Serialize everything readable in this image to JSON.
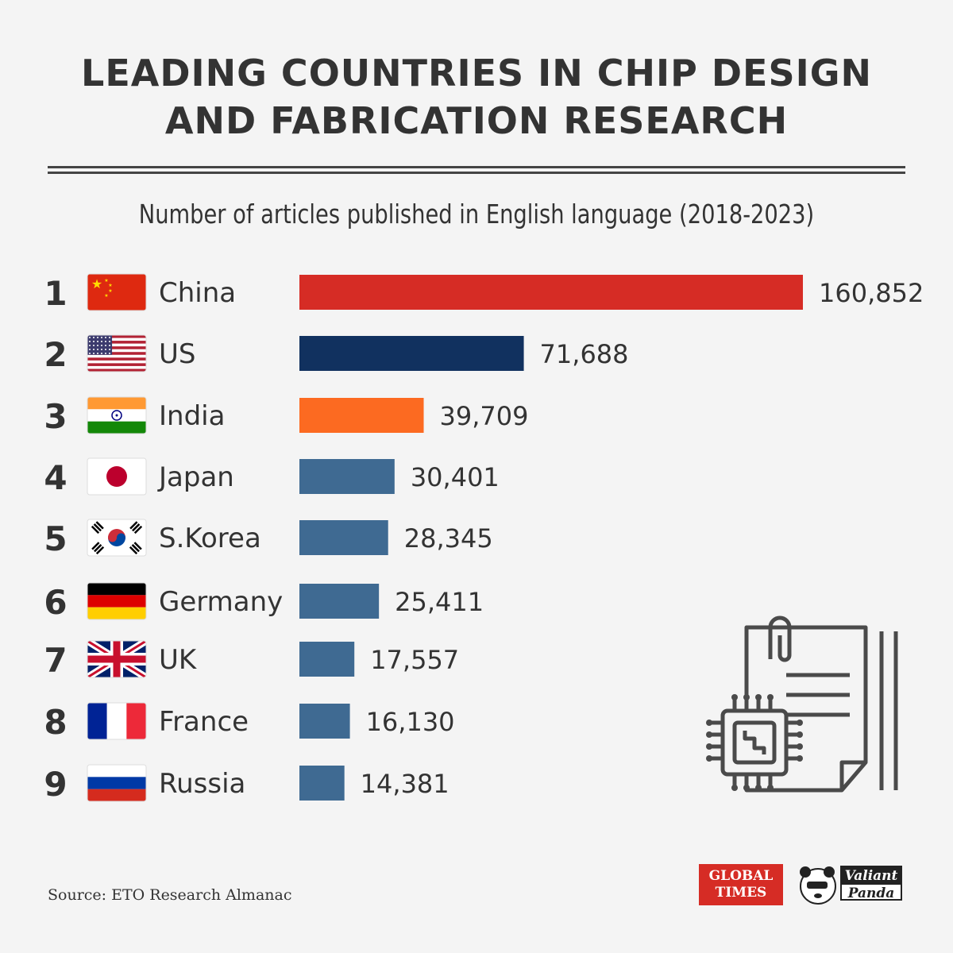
{
  "title_line1": "LEADING COUNTRIES IN CHIP DESIGN",
  "title_line2": "AND FABRICATION RESEARCH",
  "subtitle": "Number of articles published in English language (2018-2023)",
  "source": "Source: ETO Research Almanac",
  "logos": {
    "global_times_line1": "GLOBAL",
    "global_times_line2": "TIMES",
    "valiant_panda_line1": "Valiant",
    "valiant_panda_line2": "Panda"
  },
  "colors": {
    "china": "#d62c25",
    "us": "#11315f",
    "india": "#fc6a21",
    "default": "#3f6a92",
    "background": "#f4f4f4",
    "text": "#333333"
  },
  "chart_data": {
    "type": "bar",
    "orientation": "horizontal",
    "categories": [
      "China",
      "US",
      "India",
      "Japan",
      "S.Korea",
      "Germany",
      "UK",
      "France",
      "Russia"
    ],
    "ranks": [
      "1",
      "2",
      "3",
      "4",
      "5",
      "6",
      "7",
      "8",
      "9"
    ],
    "values": [
      160852,
      71688,
      39709,
      30401,
      28345,
      25411,
      17557,
      16130,
      14381
    ],
    "value_labels": [
      "160,852",
      "71,688",
      "39,709",
      "30,401",
      "28,345",
      "25,411",
      "17,557",
      "16,130",
      "14,381"
    ],
    "flags": [
      "china-flag",
      "us-flag",
      "india-flag",
      "japan-flag",
      "south-korea-flag",
      "germany-flag",
      "uk-flag",
      "france-flag",
      "russia-flag"
    ],
    "bar_colors": [
      "#d62c25",
      "#11315f",
      "#fc6a21",
      "#3f6a92",
      "#3f6a92",
      "#3f6a92",
      "#3f6a92",
      "#3f6a92",
      "#3f6a92"
    ],
    "xlim": [
      0,
      160852
    ],
    "grid": false
  }
}
